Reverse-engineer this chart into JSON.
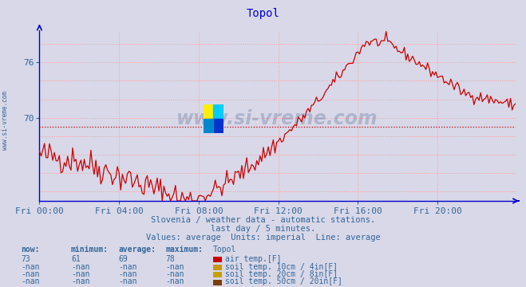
{
  "title": "Topol",
  "title_color": "#0000cc",
  "bg_color": "#d8d8e8",
  "plot_bg_color": "#d8d8e8",
  "line_color": "#cc0000",
  "grid_color": "#ff9999",
  "axis_color": "#0000cc",
  "text_color": "#336699",
  "avg_line_value": 69.0,
  "avg_line_color": "#cc0000",
  "ylim": [
    61,
    79.5
  ],
  "yticks": [
    70,
    76
  ],
  "ytick_labels": [
    "70",
    "76"
  ],
  "xmin": 0,
  "xmax": 287,
  "xtick_positions": [
    0,
    48,
    96,
    144,
    192,
    240
  ],
  "xtick_labels": [
    "Fri 00:00",
    "Fri 04:00",
    "Fri 08:00",
    "Fri 12:00",
    "Fri 16:00",
    "Fri 20:00"
  ],
  "subtitle1": "Slovenia / weather data - automatic stations.",
  "subtitle2": "last day / 5 minutes.",
  "subtitle3": "Values: average  Units: imperial  Line: average",
  "watermark": "www.si-vreme.com",
  "watermark_color": "#1a3a6e",
  "side_label": "www.si-vreme.com",
  "legend_headers": [
    "now:",
    "minimum:",
    "average:",
    "maximum:",
    "Topol"
  ],
  "legend_rows": [
    [
      "73",
      "61",
      "69",
      "78",
      "#cc0000",
      "air temp.[F]"
    ],
    [
      "-nan",
      "-nan",
      "-nan",
      "-nan",
      "#c8960c",
      "soil temp. 10cm / 4in[F]"
    ],
    [
      "-nan",
      "-nan",
      "-nan",
      "-nan",
      "#c8a000",
      "soil temp. 20cm / 8in[F]"
    ],
    [
      "-nan",
      "-nan",
      "-nan",
      "-nan",
      "#7a4000",
      "soil temp. 50cm / 20in[F]"
    ]
  ]
}
